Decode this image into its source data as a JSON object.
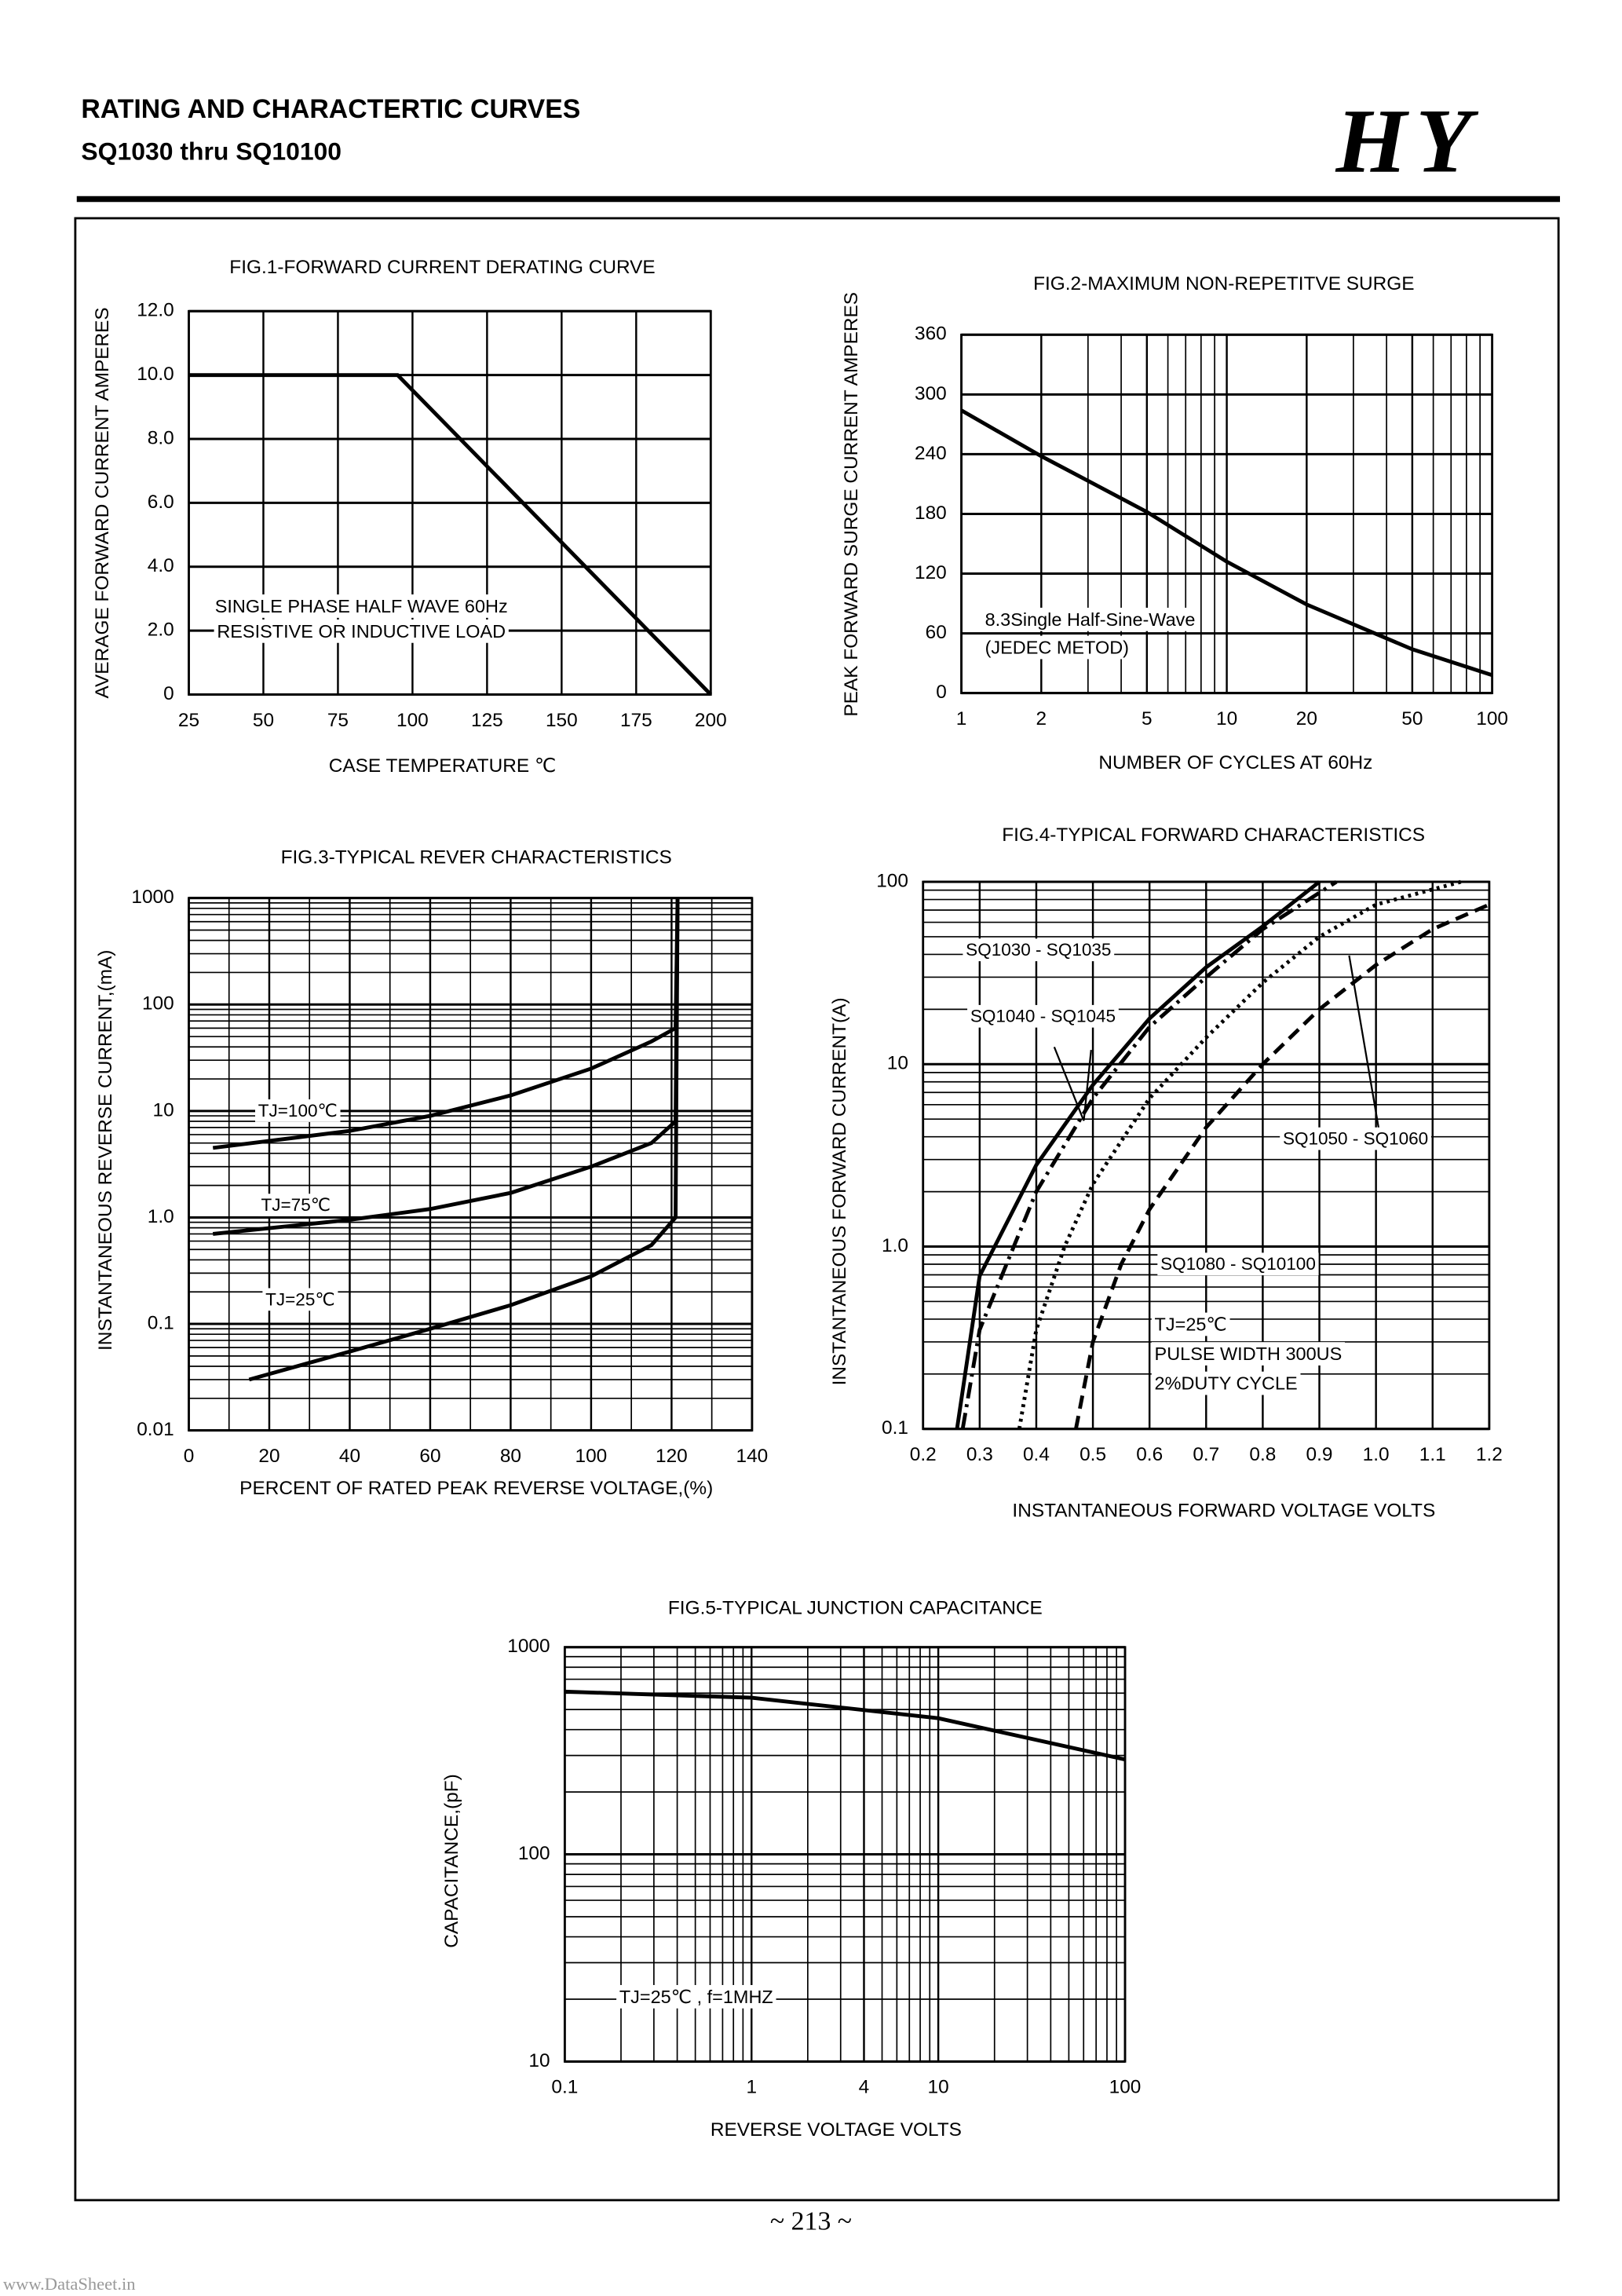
{
  "header": {
    "title": "RATING AND CHARACTERTIC CURVES",
    "subtitle": "SQ1030 thru SQ10100",
    "logo": "HY"
  },
  "chart_data": [
    {
      "type": "line",
      "title": "FIG.1-FORWARD CURRENT DERATING CURVE",
      "x_label": "CASE TEMPERATURE ℃",
      "y_label": "AVERAGE FORWARD CURRENT AMPERES",
      "x": [
        25,
        95,
        200
      ],
      "series": [
        {
          "name": null,
          "color": "#000000",
          "dash": "solid",
          "values": [
            10,
            10,
            0
          ]
        }
      ],
      "xlim": [
        25,
        200
      ],
      "xticks": [
        25,
        50,
        75,
        100,
        125,
        150,
        175,
        200
      ],
      "ylim": [
        0,
        12
      ],
      "yticks": [
        0,
        {
          "value": 2,
          "label": "2.0"
        },
        {
          "value": 4,
          "label": "4.0"
        },
        {
          "value": 6,
          "label": "6.0"
        },
        {
          "value": 8,
          "label": "8.0"
        },
        {
          "value": 10,
          "label": "10.0"
        },
        {
          "value": 12,
          "label": "12.0"
        }
      ],
      "grid": true,
      "xscale": "linear",
      "yscale": "linear",
      "annotations": [
        "SINGLE PHASE HALF WAVE 60Hz",
        "RESISTIVE OR  INDUCTIVE LOAD"
      ]
    },
    {
      "type": "line",
      "title": "FIG.2-MAXIMUM NON-REPETITVE SURGE",
      "x_label": "NUMBER OF CYCLES AT 60Hz",
      "y_label": "PEAK FORWARD  SURGE CURRENT AMPERES",
      "x": [
        1,
        2,
        5,
        10,
        20,
        50,
        100
      ],
      "series": [
        {
          "name": null,
          "color": "#000000",
          "dash": "solid",
          "values": [
            284,
            238,
            182,
            132,
            89,
            44,
            18
          ]
        }
      ],
      "xlim": [
        1,
        100
      ],
      "xticks": [
        1,
        2,
        5,
        10,
        20,
        50,
        100
      ],
      "ylim": [
        0,
        360
      ],
      "yticks": [
        0,
        60,
        120,
        180,
        240,
        300,
        360
      ],
      "grid": true,
      "xscale": "log",
      "yscale": "linear",
      "annotations": [
        "8.3Single Half-Sine-Wave",
        "(JEDEC METOD)"
      ]
    },
    {
      "type": "line",
      "title": "FIG.3-TYPICAL REVER CHARACTERISTICS",
      "x_label": "PERCENT OF RATED PEAK REVERSE VOLTAGE,(%)",
      "y_label": "INSTANTANEOUS REVERSE CURRENT,(mA)",
      "series": [
        {
          "name": "TJ=100℃",
          "color": "#000000",
          "dash": "solid",
          "x": [
            6,
            40,
            60,
            80,
            100,
            115,
            121,
            121.5
          ],
          "values": [
            4.5,
            6.5,
            9,
            14,
            25,
            45,
            60,
            1000
          ]
        },
        {
          "name": "TJ=75℃",
          "color": "#000000",
          "dash": "solid",
          "x": [
            6,
            40,
            60,
            80,
            100,
            115,
            121,
            121.5
          ],
          "values": [
            0.7,
            0.95,
            1.2,
            1.7,
            3,
            5,
            8,
            1000
          ]
        },
        {
          "name": "TJ=25℃",
          "color": "#000000",
          "dash": "solid",
          "x": [
            15,
            40,
            60,
            80,
            100,
            115,
            121,
            121.5
          ],
          "values": [
            0.03,
            0.055,
            0.09,
            0.15,
            0.28,
            0.55,
            1,
            1000
          ]
        }
      ],
      "xlim": [
        0,
        140
      ],
      "xticks": [
        0,
        20,
        40,
        60,
        80,
        100,
        120,
        140
      ],
      "ylim": [
        0.01,
        1000
      ],
      "yticks": [
        0.01,
        0.1,
        {
          "value": 1,
          "label": "1.0"
        },
        10,
        100,
        1000
      ],
      "grid": true,
      "minor_grid": true,
      "xscale": "linear",
      "yscale": "log"
    },
    {
      "type": "line",
      "title": "FIG.4-TYPICAL FORWARD CHARACTERISTICS",
      "x_label": "INSTANTANEOUS FORWARD VOLTAGE VOLTS",
      "y_label": "INSTANTANEOUS FORWARD CURRENT(A)",
      "series": [
        {
          "name": "SQ1030 - SQ1035",
          "color": "#000000",
          "dash": "solid",
          "x": [
            0.26,
            0.3,
            0.4,
            0.5,
            0.6,
            0.7,
            0.8,
            0.9
          ],
          "values": [
            0.1,
            0.69,
            2.8,
            7.7,
            17.8,
            34,
            57,
            100
          ]
        },
        {
          "name": "SQ1040 - SQ1045",
          "color": "#000000",
          "dash": "dashdot",
          "x": [
            0.27,
            0.3,
            0.4,
            0.5,
            0.6,
            0.7,
            0.8,
            0.93
          ],
          "values": [
            0.1,
            0.35,
            2,
            6.5,
            16,
            30,
            55,
            100
          ]
        },
        {
          "name": "SQ1050 - SQ1060",
          "color": "#000000",
          "dash": "dotted",
          "x": [
            0.37,
            0.4,
            0.45,
            0.5,
            0.6,
            0.7,
            0.8,
            0.9,
            1.0,
            1.15
          ],
          "values": [
            0.1,
            0.35,
            1,
            2.2,
            6.5,
            14,
            28,
            50,
            75,
            100
          ]
        },
        {
          "name": "SQ1080 - SQ10100",
          "color": "#000000",
          "dash": "dashed",
          "x": [
            0.47,
            0.5,
            0.55,
            0.6,
            0.7,
            0.8,
            0.9,
            1.0,
            1.1,
            1.2
          ],
          "values": [
            0.1,
            0.3,
            0.8,
            1.6,
            4.5,
            10,
            20,
            35,
            55,
            75
          ]
        }
      ],
      "xlim": [
        0.2,
        1.2
      ],
      "xticks": [
        0.2,
        0.3,
        0.4,
        0.5,
        0.6,
        0.7,
        0.8,
        0.9,
        {
          "value": 1,
          "label": "1.0"
        },
        1.1,
        1.2
      ],
      "ylim": [
        0.1,
        100
      ],
      "yticks": [
        0.1,
        {
          "value": 1,
          "label": "1.0"
        },
        10,
        100
      ],
      "grid": true,
      "xscale": "linear",
      "yscale": "log",
      "annotations": [
        "TJ=25℃",
        "PULSE WIDTH 300US",
        "2%DUTY CYCLE"
      ]
    },
    {
      "type": "line",
      "title": "FIG.5-TYPICAL JUNCTION CAPACITANCE",
      "x_label": "REVERSE VOLTAGE VOLTS",
      "y_label": "CAPACITANCE,(pF)",
      "x": [
        0.1,
        1,
        10,
        100
      ],
      "series": [
        {
          "name": null,
          "color": "#000000",
          "dash": "solid",
          "values": [
            610,
            570,
            454,
            287
          ]
        }
      ],
      "xlim": [
        0.1,
        100
      ],
      "xticks": [
        0.1,
        1,
        4,
        10,
        100
      ],
      "ylim": [
        10,
        1000
      ],
      "yticks": [
        10,
        100,
        1000
      ],
      "grid": true,
      "xscale": "log",
      "yscale": "log",
      "annotations": [
        "TJ=25℃ , f=1MHZ"
      ]
    }
  ],
  "footer": {
    "page": "~ 213 ~",
    "watermark": "www.DataSheet.in"
  }
}
